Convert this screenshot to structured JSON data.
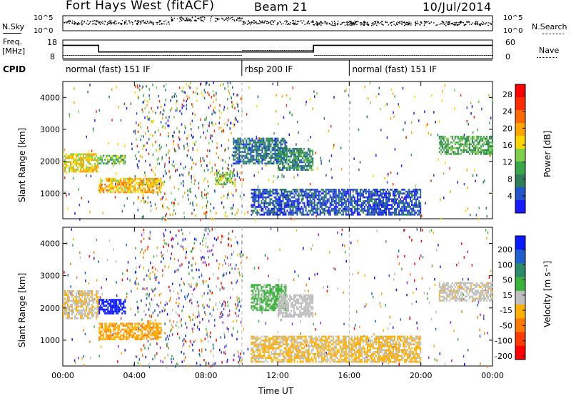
{
  "header": {
    "station": "Fort Hays West (fitACF)",
    "beam": "Beam 21",
    "date": "10/Jul/2014"
  },
  "top_panels": {
    "nsky_label": "N.Sky",
    "nsearch_label": "N.Search",
    "nsky_ticks": [
      "10^5",
      "10^0"
    ],
    "nsearch_ticks": [
      "10^5",
      "10^0"
    ],
    "freq_label_1": "Freq.",
    "freq_label_2": "[MHz]",
    "freq_ticks": [
      "18",
      "8"
    ],
    "nave_label": "Nave",
    "nave_ticks": [
      "60",
      "0"
    ],
    "cpid_label": "CPID",
    "cpid_segments": [
      {
        "label": "normal (fast) 151 IF",
        "start_hour": 0,
        "end_hour": 10
      },
      {
        "label": "rbsp 200 IF",
        "start_hour": 10,
        "end_hour": 16
      },
      {
        "label": "normal (fast) 151 IF",
        "start_hour": 16,
        "end_hour": 24
      }
    ]
  },
  "power_panel": {
    "ylabel": "Slant Range [km]",
    "yticks": [
      "1000",
      "2000",
      "3000",
      "4000"
    ],
    "colorbar_label": "Power [dB]",
    "colorbar_ticks": [
      "4",
      "8",
      "12",
      "16",
      "20",
      "24",
      "28"
    ],
    "colorbar_colors": [
      "#1a1aff",
      "#2255cc",
      "#2e7d5b",
      "#3aa64a",
      "#7fcf4a",
      "#ffd700",
      "#ffa500",
      "#ff6a00",
      "#ff2a00",
      "#ff0000"
    ]
  },
  "velocity_panel": {
    "ylabel": "Slant Range [km]",
    "yticks": [
      "1000",
      "2000",
      "3000",
      "4000"
    ],
    "colorbar_label": "Velocity [m s⁻¹]",
    "colorbar_ticks": [
      "200",
      "100",
      "50",
      "15",
      "-15",
      "-50",
      "-100",
      "-200"
    ],
    "colorbar_colors": [
      "#0a1aff",
      "#1f5fd0",
      "#2a8a6a",
      "#3ab43a",
      "#bfbfbf",
      "#ffb000",
      "#ff7a00",
      "#ff3a00",
      "#ff0000"
    ]
  },
  "xaxis": {
    "label": "Time UT",
    "ticks": [
      "00:00",
      "04:00",
      "08:00",
      "12:00",
      "16:00",
      "20:00",
      "00:00"
    ]
  },
  "chart_data": {
    "type": "heatmap",
    "title": "Fort Hays West (fitACF) Beam 21 10/Jul/2014",
    "xlabel": "Time UT",
    "ylabel": "Slant Range [km]",
    "x_range_hours": [
      0,
      24
    ],
    "y_range_km": [
      200,
      4500
    ],
    "freq_mhz": [
      {
        "start_hour": 0,
        "end_hour": 2,
        "value": 15
      },
      {
        "start_hour": 2,
        "end_hour": 14,
        "value": 10
      },
      {
        "start_hour": 14,
        "end_hour": 24,
        "value": 15
      }
    ],
    "power_echo_bands": [
      {
        "start_hour": 0.0,
        "end_hour": 2.0,
        "range_km": [
          1650,
          2200
        ],
        "power_db": 18
      },
      {
        "start_hour": 2.0,
        "end_hour": 5.5,
        "range_km": [
          1000,
          1450
        ],
        "power_db": 20
      },
      {
        "start_hour": 2.0,
        "end_hour": 3.5,
        "range_km": [
          1900,
          2200
        ],
        "power_db": 14
      },
      {
        "start_hour": 8.5,
        "end_hour": 9.5,
        "range_km": [
          1250,
          1650
        ],
        "power_db": 14
      },
      {
        "start_hour": 9.5,
        "end_hour": 12.5,
        "range_km": [
          1900,
          2700
        ],
        "power_db": 8
      },
      {
        "start_hour": 12.0,
        "end_hour": 14.0,
        "range_km": [
          1700,
          2400
        ],
        "power_db": 10
      },
      {
        "start_hour": 10.5,
        "end_hour": 20.0,
        "range_km": [
          300,
          1100
        ],
        "power_db": 6
      },
      {
        "start_hour": 21.0,
        "end_hour": 24.0,
        "range_km": [
          2200,
          2800
        ],
        "power_db": 12
      }
    ],
    "velocity_echo_bands": [
      {
        "start_hour": 0.0,
        "end_hour": 2.0,
        "range_km": [
          1650,
          2500
        ],
        "velocity": -10
      },
      {
        "start_hour": 2.0,
        "end_hour": 3.5,
        "range_km": [
          1800,
          2250
        ],
        "velocity": 180
      },
      {
        "start_hour": 2.0,
        "end_hour": 5.5,
        "range_km": [
          1000,
          1500
        ],
        "velocity": -40
      },
      {
        "start_hour": 10.5,
        "end_hour": 12.5,
        "range_km": [
          1900,
          2700
        ],
        "velocity": 40
      },
      {
        "start_hour": 12.0,
        "end_hour": 14.0,
        "range_km": [
          1700,
          2400
        ],
        "velocity": 5
      },
      {
        "start_hour": 10.5,
        "end_hour": 20.0,
        "range_km": [
          300,
          1100
        ],
        "velocity": -20
      },
      {
        "start_hour": 21.0,
        "end_hour": 24.0,
        "range_km": [
          2200,
          2800
        ],
        "velocity": 0
      }
    ]
  }
}
